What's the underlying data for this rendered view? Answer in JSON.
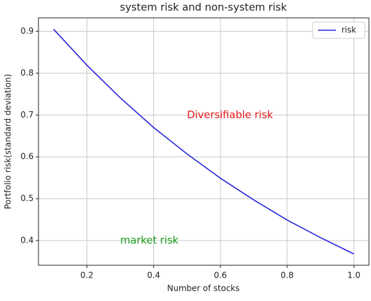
{
  "chart_data": {
    "type": "line",
    "title": "system risk and non-system risk",
    "xlabel": "Number of stocks",
    "ylabel": "Portfolio risk(standard deviation)",
    "x": [
      0.1,
      0.2,
      0.3,
      0.4,
      0.5,
      0.6,
      0.7,
      0.8,
      0.9,
      1.0
    ],
    "series": [
      {
        "name": "risk",
        "color": "#2424d8",
        "values": [
          0.905,
          0.819,
          0.741,
          0.67,
          0.607,
          0.549,
          0.497,
          0.449,
          0.407,
          0.368
        ]
      }
    ],
    "xlim": [
      0.055,
      1.045
    ],
    "ylim": [
      0.341,
      0.932
    ],
    "xticks": [
      0.2,
      0.4,
      0.6,
      0.8,
      {
        "value": 1,
        "label": "1.0"
      }
    ],
    "yticks": [
      0.4,
      0.5,
      0.6,
      0.7,
      0.8,
      0.9
    ],
    "grid": true,
    "legend": "upper right",
    "annotations": [
      {
        "text": "Diversifiable risk",
        "x": 0.5,
        "y": 0.7,
        "color": "#e8191c"
      },
      {
        "text": "market risk",
        "x": 0.3,
        "y": 0.4,
        "color": "#1a9a1a"
      }
    ]
  }
}
